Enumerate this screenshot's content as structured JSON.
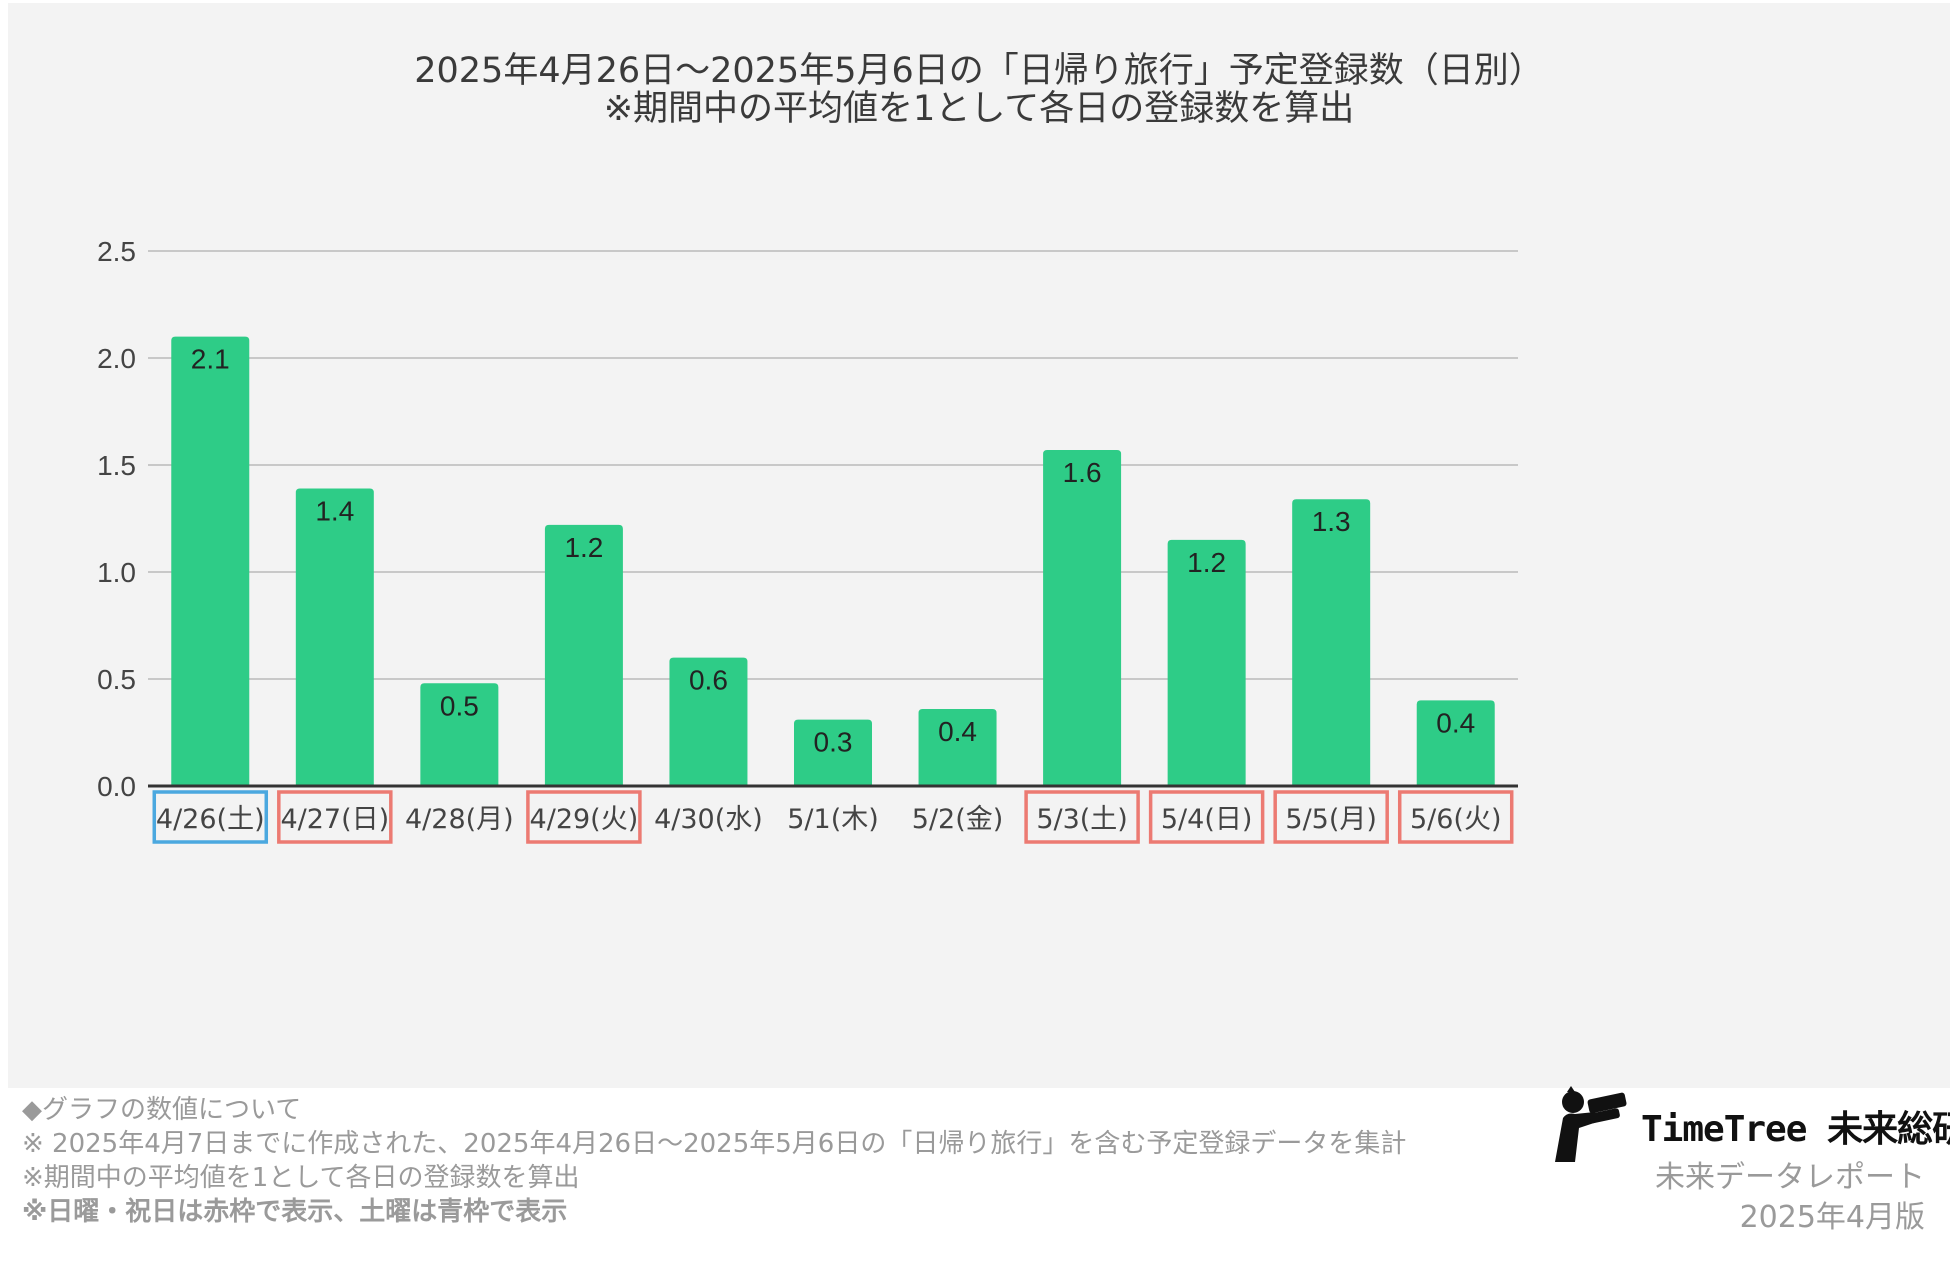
{
  "chart_data": {
    "type": "bar",
    "title": "2025年4月26日〜2025年5月6日の「日帰り旅行」予定登録数（日別）",
    "subtitle": "※期間中の平均値を1として各日の登録数を算出",
    "categories": [
      "4/26(土)",
      "4/27(日)",
      "4/28(月)",
      "4/29(火)",
      "4/30(水)",
      "5/1(木)",
      "5/2(金)",
      "5/3(土)",
      "5/4(日)",
      "5/5(月)",
      "5/6(火)"
    ],
    "values": [
      2.1,
      1.39,
      0.48,
      1.22,
      0.6,
      0.31,
      0.36,
      1.57,
      1.15,
      1.34,
      0.4
    ],
    "data_labels": [
      "2.1",
      "1.4",
      "0.5",
      "1.2",
      "0.6",
      "0.3",
      "0.4",
      "1.6",
      "1.2",
      "1.3",
      "0.4"
    ],
    "category_frames": [
      "saturday",
      "holiday",
      "none",
      "holiday",
      "none",
      "none",
      "none",
      "holiday",
      "holiday",
      "holiday",
      "holiday"
    ],
    "yticks": [
      "0.0",
      "0.5",
      "1.0",
      "1.5",
      "2.0",
      "2.5"
    ],
    "ytick_values": [
      0,
      0.5,
      1.0,
      1.5,
      2.0,
      2.5
    ],
    "ylim": [
      0,
      2.5
    ],
    "xlabel": "",
    "ylabel": "",
    "grid": true,
    "colors": {
      "bar": "#2ecc87",
      "grid": "#c8c8c8",
      "axis": "#333333",
      "holiday_frame": "#ec7a72",
      "saturday_frame": "#4ba8df",
      "label": "#222222",
      "tick": "#444444"
    }
  },
  "notes": {
    "heading": "◆グラフの数値について",
    "line1": "※ 2025年4月7日までに作成された、2025年4月26日〜2025年5月6日の「日帰り旅行」を含む予定登録データを集計",
    "line2": "※期間中の平均値を1として各日の登録数を算出",
    "line3": "※日曜・祝日は赤枠で表示、土曜は青枠で表示"
  },
  "brand": {
    "name": "TimeTree 未来総研",
    "subtitle": "未来データレポート",
    "edition": "2025年4月版",
    "logo_icon": "person-with-binoculars-icon"
  }
}
